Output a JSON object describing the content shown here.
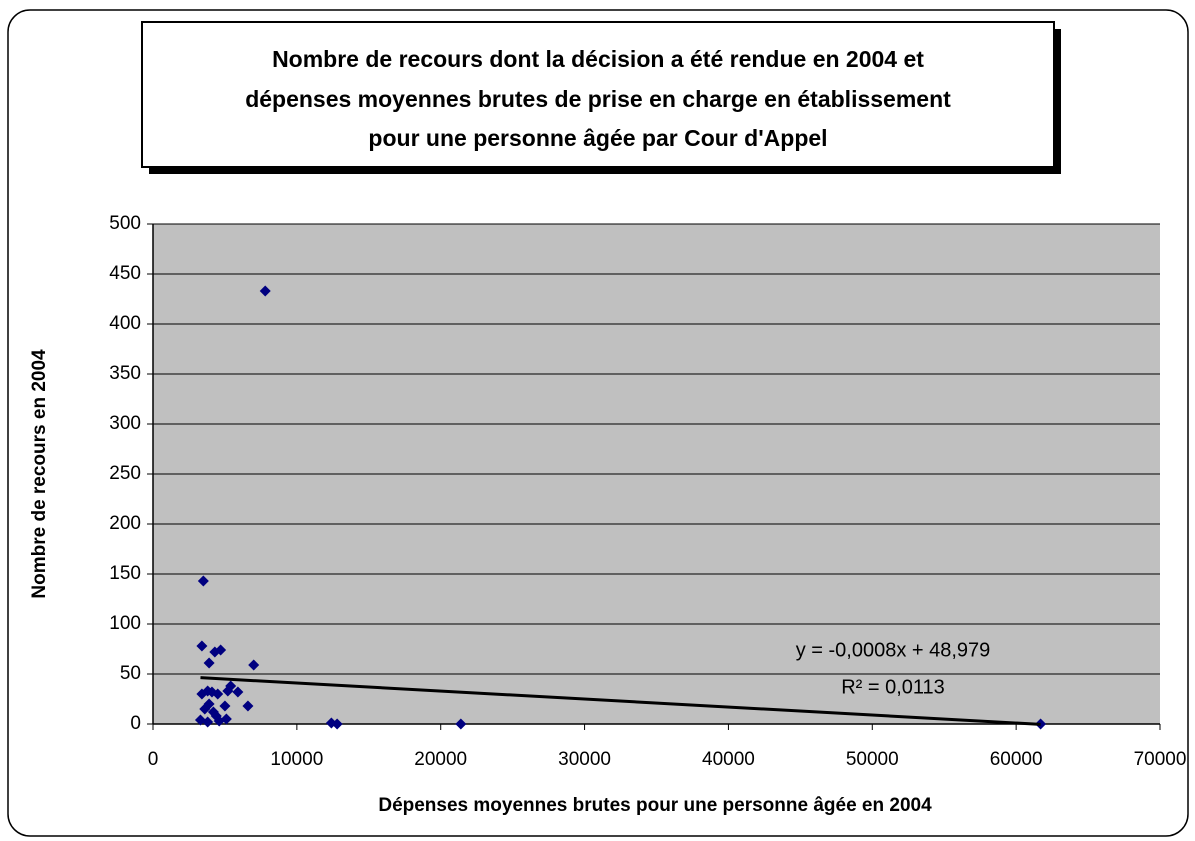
{
  "chart_data": {
    "type": "scatter",
    "title": [
      "Nombre de recours dont la décision a été rendue en 2004 et",
      "dépenses moyennes brutes de prise en charge en établissement",
      "pour une personne âgée par Cour d'Appel"
    ],
    "x_label": "Dépenses moyennes brutes pour une personne âgée en 2004",
    "y_label": "Nombre de recours en 2004",
    "series": [
      {
        "name": null,
        "color": "#000080",
        "x": [
          3500,
          3400,
          3900,
          4300,
          4700,
          7800,
          7000,
          6600,
          5900,
          5400,
          5200,
          5000,
          5100,
          4500,
          4100,
          3800,
          3400,
          3600,
          3900,
          4200,
          4400,
          3300,
          3800,
          4600,
          12400,
          12800,
          21400,
          61700
        ],
        "values": [
          143,
          78,
          61,
          72,
          74,
          433,
          59,
          18,
          32,
          38,
          33,
          18,
          5,
          30,
          32,
          33,
          30,
          15,
          20,
          12,
          8,
          4,
          2,
          3,
          1,
          0,
          0,
          0
        ]
      }
    ],
    "trendline": {
      "slope": -0.0008,
      "intercept": 48.979,
      "equation": "y = -0,0008x + 48,979",
      "r2": "R² = 0,0113"
    },
    "xlim": [
      0,
      70000
    ],
    "xticks": [
      0,
      10000,
      20000,
      30000,
      40000,
      50000,
      60000,
      70000
    ],
    "ylim": [
      0,
      500
    ],
    "yticks": [
      0,
      50,
      100,
      150,
      200,
      250,
      300,
      350,
      400,
      450,
      500
    ],
    "grid": true
  }
}
